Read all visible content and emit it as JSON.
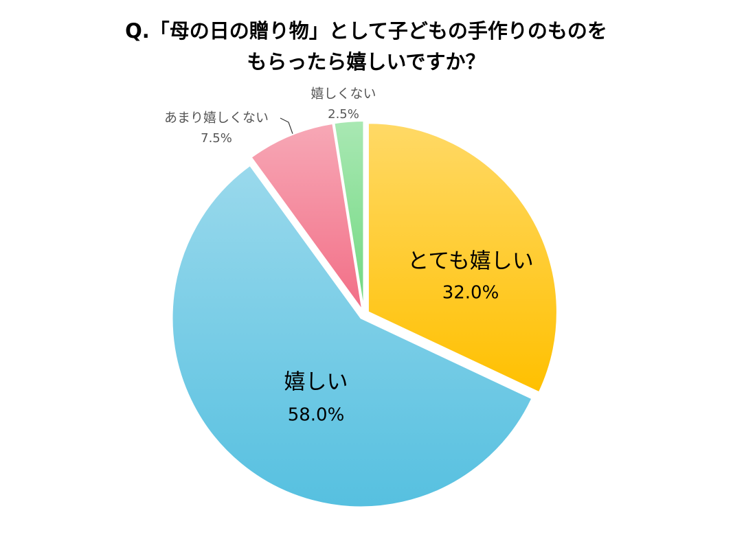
{
  "chart_data": {
    "type": "pie",
    "title": [
      "Q.「母の日の贈り物」として子どもの手作りのものを",
      "もらったら嬉しいですか？"
    ],
    "categories": [
      "とても嬉しい",
      "嬉しい",
      "あまり嬉しくない",
      "嬉しくない"
    ],
    "values": [
      32.0,
      58.0,
      7.5,
      2.5
    ],
    "value_labels": [
      "32.0%",
      "58.0%",
      "7.5%",
      "2.5%"
    ],
    "colors": [
      "#ffc000",
      "#56c0e0",
      "#f26e86",
      "#70d880"
    ]
  }
}
